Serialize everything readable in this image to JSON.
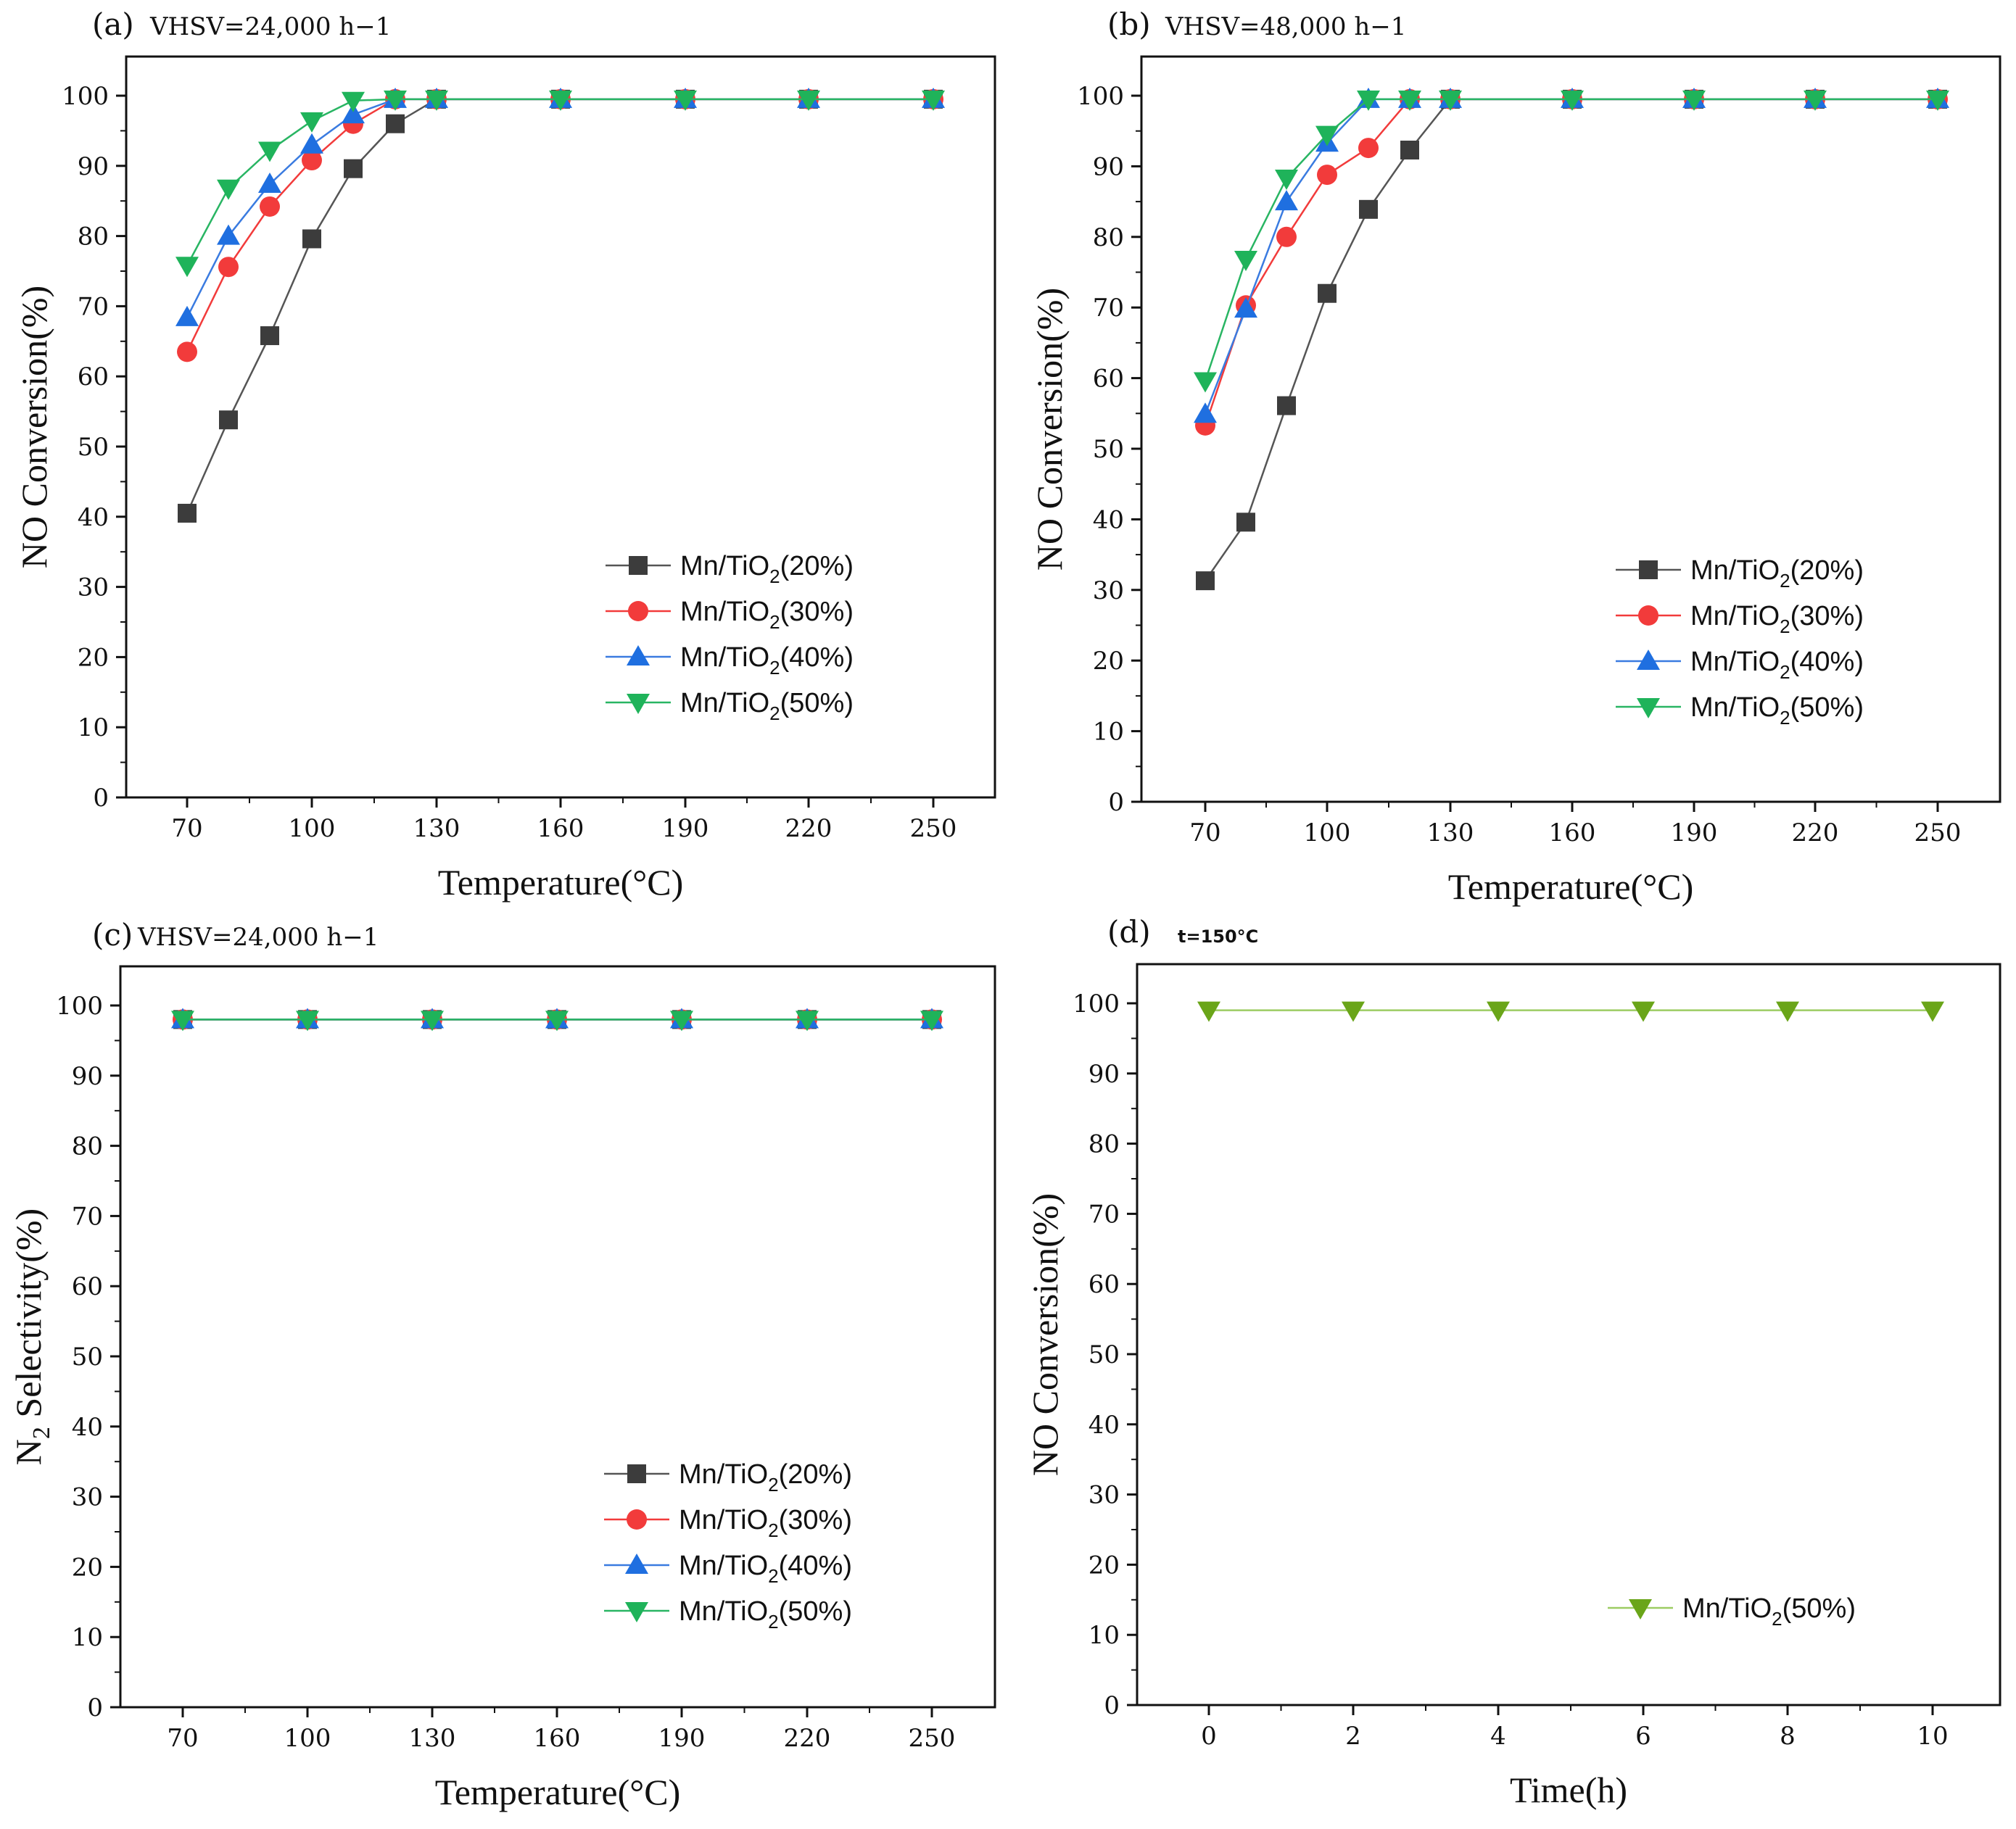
{
  "figure": {
    "panels": [
      "a",
      "b",
      "c",
      "d"
    ]
  },
  "chart_data": [
    {
      "id": "a",
      "type": "line",
      "panel_label": "(a)",
      "condition": "VHSV=24,000 h−1",
      "x_categories": [
        "70",
        "80",
        "90",
        "100",
        "110",
        "120",
        "130",
        "160",
        "190",
        "220",
        "250"
      ],
      "x_tick_labels": [
        "70",
        "100",
        "130",
        "160",
        "190",
        "220",
        "250"
      ],
      "xlabel": "Temperature(°C)",
      "ylabel": "NO Conversion(%)",
      "ylim": [
        0,
        100
      ],
      "y_ticks": [
        0,
        10,
        20,
        30,
        40,
        50,
        60,
        70,
        80,
        90,
        100
      ],
      "legend_position": "bottom-right",
      "series": [
        {
          "name": "Mn/TiO2(20%)",
          "legend_text": "Mn/TiO",
          "legend_sub": "2",
          "legend_suffix": "(20%)",
          "marker": "square",
          "color": "#3c3c3c",
          "line_color": "#555555",
          "values": [
            40.5,
            53.8,
            65.8,
            79.6,
            89.6,
            96.0,
            99.5,
            99.5,
            99.5,
            99.5,
            99.5
          ]
        },
        {
          "name": "Mn/TiO2(30%)",
          "legend_text": "Mn/TiO",
          "legend_sub": "2",
          "legend_suffix": "(30%)",
          "marker": "circle",
          "color": "#f23b3b",
          "line_color": "#f23b3b",
          "values": [
            63.5,
            75.6,
            84.2,
            90.8,
            96.0,
            99.5,
            99.5,
            99.5,
            99.5,
            99.5,
            99.5
          ]
        },
        {
          "name": "Mn/TiO2(40%)",
          "legend_text": "Mn/TiO",
          "legend_sub": "2",
          "legend_suffix": "(40%)",
          "marker": "triangle-up",
          "color": "#1f6fe0",
          "line_color": "#3a7be0",
          "values": [
            68.4,
            80.0,
            87.4,
            93.0,
            97.3,
            99.5,
            99.5,
            99.5,
            99.5,
            99.5,
            99.5
          ]
        },
        {
          "name": "Mn/TiO2(50%)",
          "legend_text": "Mn/TiO",
          "legend_sub": "2",
          "legend_suffix": "(50%)",
          "marker": "triangle-down",
          "color": "#1fb35a",
          "line_color": "#29b563",
          "values": [
            75.8,
            86.8,
            92.2,
            96.4,
            99.3,
            99.5,
            99.5,
            99.5,
            99.5,
            99.5,
            99.5
          ]
        }
      ]
    },
    {
      "id": "b",
      "type": "line",
      "panel_label": "(b)",
      "condition": "VHSV=48,000 h−1",
      "x_categories": [
        "70",
        "80",
        "90",
        "100",
        "110",
        "120",
        "130",
        "160",
        "190",
        "220",
        "250"
      ],
      "x_tick_labels": [
        "70",
        "100",
        "130",
        "160",
        "190",
        "220",
        "250"
      ],
      "xlabel": "Temperature(°C)",
      "ylabel": "NO Conversion(%)",
      "ylim": [
        0,
        100
      ],
      "y_ticks": [
        0,
        10,
        20,
        30,
        40,
        50,
        60,
        70,
        80,
        90,
        100
      ],
      "legend_position": "bottom-right",
      "series": [
        {
          "name": "Mn/TiO2(20%)",
          "legend_text": "Mn/TiO",
          "legend_sub": "2",
          "legend_suffix": "(20%)",
          "marker": "square",
          "color": "#3c3c3c",
          "line_color": "#555555",
          "values": [
            31.3,
            39.6,
            56.1,
            72.0,
            83.9,
            92.3,
            99.5,
            99.5,
            99.5,
            99.5,
            99.5
          ]
        },
        {
          "name": "Mn/TiO2(30%)",
          "legend_text": "Mn/TiO",
          "legend_sub": "2",
          "legend_suffix": "(30%)",
          "marker": "circle",
          "color": "#f23b3b",
          "line_color": "#f23b3b",
          "values": [
            53.3,
            70.3,
            80.0,
            88.8,
            92.6,
            99.5,
            99.5,
            99.5,
            99.5,
            99.5,
            99.5
          ]
        },
        {
          "name": "Mn/TiO2(40%)",
          "legend_text": "Mn/TiO",
          "legend_sub": "2",
          "legend_suffix": "(40%)",
          "marker": "triangle-up",
          "color": "#1f6fe0",
          "line_color": "#3a7be0",
          "values": [
            54.9,
            69.8,
            85.0,
            93.3,
            99.5,
            99.5,
            99.5,
            99.5,
            99.5,
            99.5,
            99.5
          ]
        },
        {
          "name": "Mn/TiO2(50%)",
          "legend_text": "Mn/TiO",
          "legend_sub": "2",
          "legend_suffix": "(50%)",
          "marker": "triangle-down",
          "color": "#1fb35a",
          "line_color": "#29b563",
          "values": [
            59.6,
            76.8,
            88.3,
            94.5,
            99.5,
            99.5,
            99.5,
            99.5,
            99.5,
            99.5,
            99.5
          ]
        }
      ]
    },
    {
      "id": "c",
      "type": "line",
      "panel_label": "(c)",
      "condition": "VHSV=24,000 h−1",
      "x_categories": [
        "70",
        "100",
        "130",
        "160",
        "190",
        "220",
        "250"
      ],
      "x_tick_labels": [
        "70",
        "100",
        "130",
        "160",
        "190",
        "220",
        "250"
      ],
      "xlabel": "Temperature(°C)",
      "ylabel_prefix": "N",
      "ylabel_sub": "2",
      "ylabel_suffix": " Selectivity(%)",
      "ylim": [
        0,
        100
      ],
      "y_ticks": [
        0,
        10,
        20,
        30,
        40,
        50,
        60,
        70,
        80,
        90,
        100
      ],
      "legend_position": "bottom-right",
      "series": [
        {
          "name": "Mn/TiO2(20%)",
          "legend_text": "Mn/TiO",
          "legend_sub": "2",
          "legend_suffix": "(20%)",
          "marker": "square",
          "color": "#3c3c3c",
          "line_color": "#555555",
          "values": [
            98.0,
            98.0,
            98.0,
            98.0,
            98.0,
            98.0,
            98.0
          ]
        },
        {
          "name": "Mn/TiO2(30%)",
          "legend_text": "Mn/TiO",
          "legend_sub": "2",
          "legend_suffix": "(30%)",
          "marker": "circle",
          "color": "#f23b3b",
          "line_color": "#f23b3b",
          "values": [
            98.0,
            98.0,
            98.0,
            98.0,
            98.0,
            98.0,
            98.0
          ]
        },
        {
          "name": "Mn/TiO2(40%)",
          "legend_text": "Mn/TiO",
          "legend_sub": "2",
          "legend_suffix": "(40%)",
          "marker": "triangle-up",
          "color": "#1f6fe0",
          "line_color": "#3a7be0",
          "values": [
            98.0,
            98.0,
            98.0,
            98.0,
            98.0,
            98.0,
            98.0
          ]
        },
        {
          "name": "Mn/TiO2(50%)",
          "legend_text": "Mn/TiO",
          "legend_sub": "2",
          "legend_suffix": "(50%)",
          "marker": "triangle-down",
          "color": "#1fb35a",
          "line_color": "#29b563",
          "values": [
            98.0,
            98.0,
            98.0,
            98.0,
            98.0,
            98.0,
            98.0
          ]
        }
      ]
    },
    {
      "id": "d",
      "type": "line",
      "panel_label": "(d)",
      "condition": "t=150°C",
      "x_categories": [
        "0",
        "2",
        "4",
        "6",
        "8",
        "10"
      ],
      "x_tick_labels": [
        "0",
        "2",
        "4",
        "6",
        "8",
        "10"
      ],
      "xlabel": "Time(h)",
      "ylabel": "NO Conversion(%)",
      "ylim": [
        0,
        100
      ],
      "y_ticks": [
        0,
        10,
        20,
        30,
        40,
        50,
        60,
        70,
        80,
        90,
        100
      ],
      "legend_position": "bottom-right",
      "series": [
        {
          "name": "Mn/TiO2(50%)",
          "legend_text": "Mn/TiO",
          "legend_sub": "2",
          "legend_suffix": "(50%)",
          "marker": "triangle-down",
          "color": "#6aa519",
          "line_color": "#9ccc62",
          "values": [
            99.0,
            99.0,
            99.0,
            99.0,
            99.0,
            99.0
          ]
        }
      ]
    }
  ]
}
